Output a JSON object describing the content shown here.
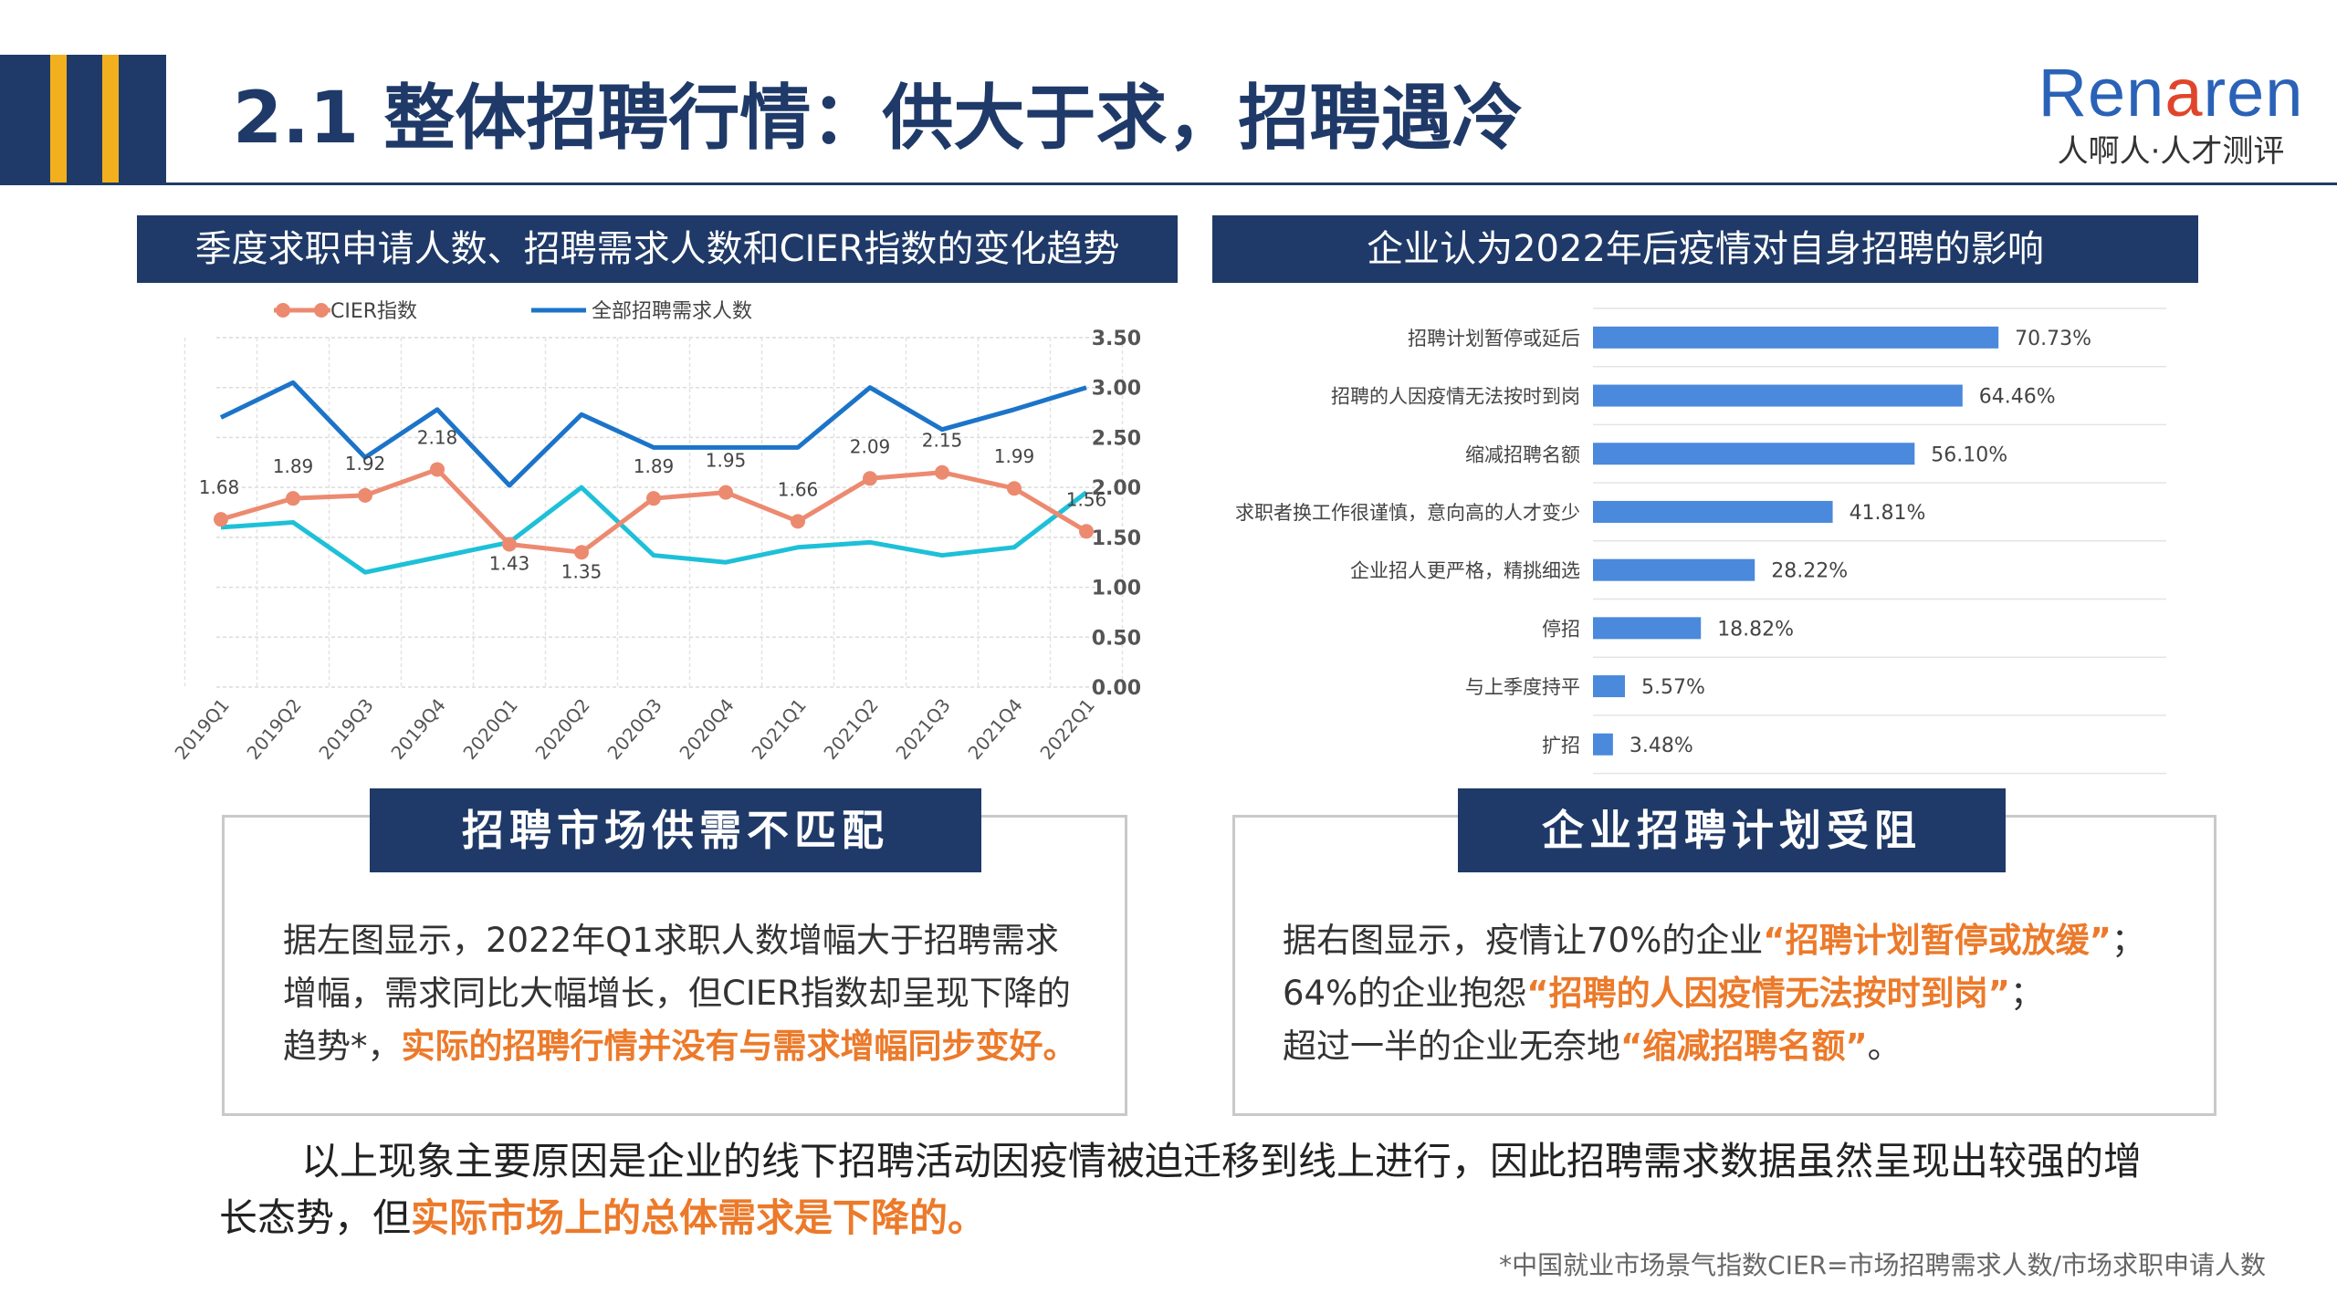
{
  "header": {
    "title": "2.1 整体招聘行情：供大于求，招聘遇冷",
    "logo_main_1": "Ren",
    "logo_main_accent": "a",
    "logo_main_2": "ren",
    "logo_sub": "人啊人·人才测评",
    "colors": {
      "navy": "#1f3a68",
      "gold": "#f2b01e",
      "highlight": "#ec7a2a"
    }
  },
  "left_panel": {
    "title": "季度求职申请人数、招聘需求人数和CIER指数的变化趋势",
    "legend": {
      "cier": "CIER指数",
      "demand": "全部招聘需求人数"
    }
  },
  "right_panel": {
    "title": "企业认为2022年后疫情对自身招聘的影响"
  },
  "box_left": {
    "label": "招聘市场供需不匹配",
    "text_plain": "据左图显示，2022年Q1求职人数增幅大于招聘需求增幅，需求同比大幅增长，但CIER指数却呈现下降的趋势*，",
    "text_highlight": "实际的招聘行情并没有与需求增幅同步变好。"
  },
  "box_right": {
    "label": "企业招聘计划受阻",
    "p1_plain": "据右图显示，疫情让70%的企业",
    "p1_hl": "“招聘计划暂停或放缓”",
    "p1_end": "；",
    "p2_plain": "64%的企业抱怨",
    "p2_hl": "“招聘的人因疫情无法按时到岗”",
    "p2_end": "；",
    "p3_plain": "超过一半的企业无奈地",
    "p3_hl": "“缩减招聘名额”",
    "p3_end": "。"
  },
  "conclusion": {
    "plain": "以上现象主要原因是企业的线下招聘活动因疫情被迫迁移到线上进行，因此招聘需求数据虽然呈现出较强的增长态势，但",
    "highlight": "实际市场上的总体需求是下降的。"
  },
  "footnote": "*中国就业市场景气指数CIER=市场招聘需求人数/市场求职申请人数",
  "chart_data": [
    {
      "type": "line",
      "title": "季度求职申请人数、招聘需求人数和CIER指数的变化趋势",
      "categories": [
        "2019Q1",
        "2019Q2",
        "2019Q3",
        "2019Q4",
        "2020Q1",
        "2020Q2",
        "2020Q3",
        "2020Q4",
        "2021Q1",
        "2021Q2",
        "2021Q3",
        "2021Q4",
        "2022Q1"
      ],
      "y_right_ticks": [
        "0.00",
        "0.50",
        "1.00",
        "1.50",
        "2.00",
        "2.50",
        "3.00",
        "3.50"
      ],
      "ylim": [
        0,
        3.5
      ],
      "grid": true,
      "legend_position": "top-left",
      "series": [
        {
          "name": "CIER指数",
          "color": "#ec8a70",
          "marker": "circle",
          "values": [
            1.68,
            1.89,
            1.92,
            2.18,
            1.43,
            1.35,
            1.89,
            1.95,
            1.66,
            2.09,
            2.15,
            1.99,
            1.56
          ],
          "labels": [
            "1.68",
            "1.89",
            "1.92",
            "2.18",
            "1.43",
            "1.35",
            "1.89",
            "1.95",
            "1.66",
            "2.09",
            "2.15",
            "1.99",
            "1.56"
          ]
        },
        {
          "name": "全部招聘需求人数",
          "color": "#1c74c9",
          "marker": "none",
          "values": [
            2.7,
            3.05,
            2.3,
            2.78,
            2.02,
            2.73,
            2.4,
            2.4,
            2.4,
            3.0,
            2.58,
            2.78,
            3.0
          ]
        },
        {
          "name": "",
          "color": "#1ec0d8",
          "marker": "none",
          "legend": false,
          "values": [
            1.6,
            1.65,
            1.15,
            1.3,
            1.45,
            2.0,
            1.32,
            1.25,
            1.4,
            1.45,
            1.32,
            1.4,
            1.95
          ]
        }
      ]
    },
    {
      "type": "bar",
      "orientation": "horizontal",
      "title": "企业认为2022年后疫情对自身招聘的影响",
      "color": "#4a89dc",
      "xlim": [
        0,
        100
      ],
      "categories": [
        "招聘计划暂停或延后",
        "招聘的人因疫情无法按时到岗",
        "缩减招聘名额",
        "求职者换工作很谨慎，意向高的人才变少",
        "企业招人更严格，精挑细选",
        "停招",
        "与上季度持平",
        "扩招"
      ],
      "values": [
        70.73,
        64.46,
        56.1,
        41.81,
        28.22,
        18.82,
        5.57,
        3.48
      ],
      "labels": [
        "70.73%",
        "64.46%",
        "56.10%",
        "41.81%",
        "28.22%",
        "18.82%",
        "5.57%",
        "3.48%"
      ]
    }
  ]
}
